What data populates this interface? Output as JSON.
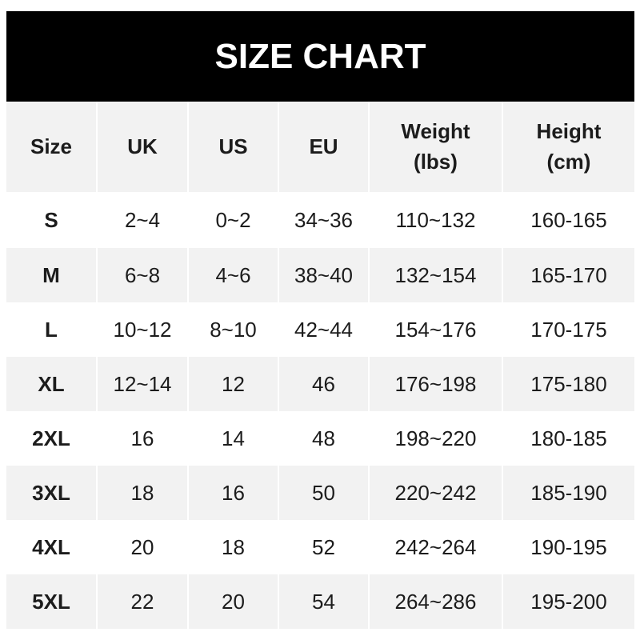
{
  "title": "SIZE CHART",
  "table": {
    "headers": [
      {
        "line1": "Size",
        "line2": ""
      },
      {
        "line1": "UK",
        "line2": ""
      },
      {
        "line1": "US",
        "line2": ""
      },
      {
        "line1": "EU",
        "line2": ""
      },
      {
        "line1": "Weight",
        "line2": "(lbs)"
      },
      {
        "line1": "Height",
        "line2": "(cm)"
      }
    ],
    "rows": [
      [
        "S",
        "2~4",
        "0~2",
        "34~36",
        "110~132",
        "160-165"
      ],
      [
        "M",
        "6~8",
        "4~6",
        "38~40",
        "132~154",
        "165-170"
      ],
      [
        "L",
        "10~12",
        "8~10",
        "42~44",
        "154~176",
        "170-175"
      ],
      [
        "XL",
        "12~14",
        "12",
        "46",
        "176~198",
        "175-180"
      ],
      [
        "2XL",
        "16",
        "14",
        "48",
        "198~220",
        "180-185"
      ],
      [
        "3XL",
        "18",
        "16",
        "50",
        "220~242",
        "185-190"
      ],
      [
        "4XL",
        "20",
        "18",
        "52",
        "242~264",
        "190-195"
      ],
      [
        "5XL",
        "22",
        "20",
        "54",
        "264~286",
        "195-200"
      ]
    ]
  },
  "colors": {
    "header_band": "#000000",
    "alt_row": "#f2f2f2",
    "text": "#1c1c1c"
  }
}
